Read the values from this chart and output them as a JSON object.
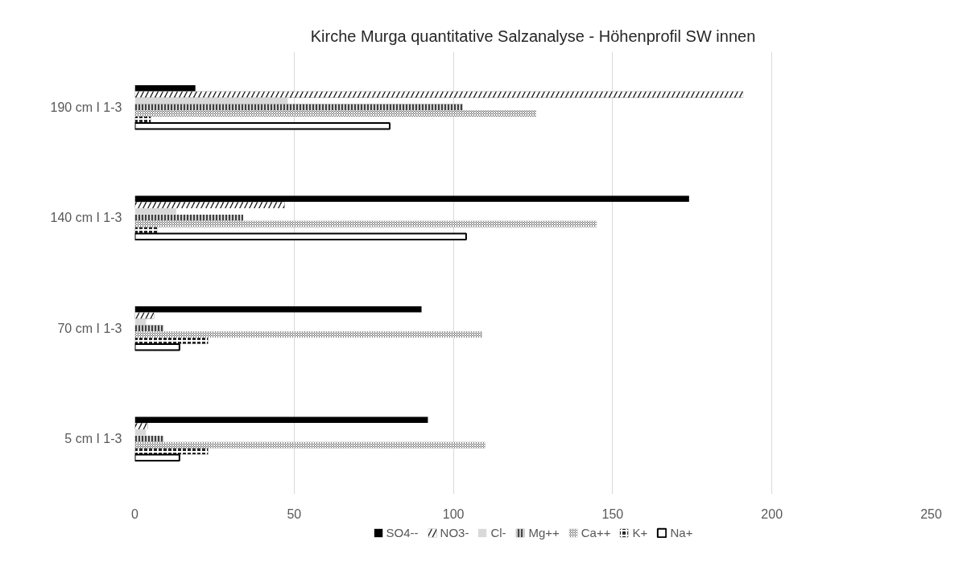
{
  "chart_data": {
    "type": "bar",
    "orientation": "horizontal",
    "title": "Kirche Murga quantitative Salzanalyse - Höhenprofil SW innen",
    "categories": [
      "190 cm I 1-3",
      "140 cm I 1-3",
      "70 cm I 1-3",
      "5 cm I 1-3"
    ],
    "series": [
      {
        "name": "SO4--",
        "color": "#000000",
        "values": [
          19,
          174,
          90,
          92
        ]
      },
      {
        "name": "NO3-",
        "color": "#1a1a1a",
        "values": [
          191,
          47,
          6,
          4
        ]
      },
      {
        "name": "Cl-",
        "color": "#d9d9d9",
        "values": [
          48,
          13,
          3.5,
          3.5
        ]
      },
      {
        "name": "Mg++",
        "color": "#404040",
        "values": [
          103,
          34,
          9,
          9
        ]
      },
      {
        "name": "Ca++",
        "color": "#7f7f7f",
        "values": [
          126,
          145,
          109,
          110
        ]
      },
      {
        "name": "K+",
        "color": "#262626",
        "values": [
          5,
          7,
          23,
          23
        ]
      },
      {
        "name": "Na+",
        "color": "#ffffff",
        "values": [
          80,
          104,
          14,
          14
        ]
      }
    ],
    "xlim": [
      0,
      250
    ],
    "xticks": [
      0,
      50,
      100,
      150,
      200,
      250
    ],
    "grid": "x",
    "legend": "bottom"
  }
}
